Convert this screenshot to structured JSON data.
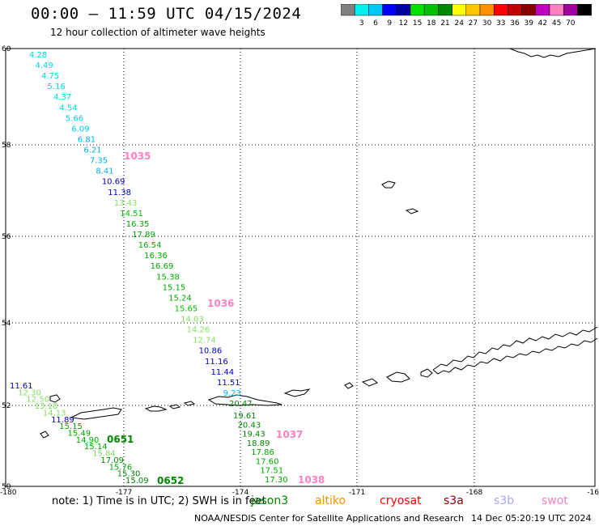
{
  "title": "00:00 – 11:59 UTC 04/15/2024",
  "subtitle": "12 hour collection of altimeter wave heights",
  "scale": {
    "unit": "(ft)",
    "colors": [
      "#808080",
      "#00f0f0",
      "#00c8f8",
      "#0000ff",
      "#0000a0",
      "#00e000",
      "#00c000",
      "#008800",
      "#ffff00",
      "#ffc800",
      "#ff9000",
      "#ff0000",
      "#c00000",
      "#880000",
      "#c000c0",
      "#ff80c0",
      "#a000a0",
      "#000000"
    ],
    "labels": [
      "3",
      "6",
      "9",
      "12",
      "15",
      "18",
      "21",
      "24",
      "27",
      "30",
      "33",
      "36",
      "39",
      "42",
      "45",
      "70"
    ]
  },
  "axes": {
    "lat_labels": [
      "60",
      "58",
      "56",
      "54",
      "52",
      "50"
    ],
    "lon_labels": [
      "-180",
      "-177",
      "-174",
      "-171",
      "-168",
      "-16"
    ]
  },
  "track1": {
    "values": [
      "4.28",
      "4.49",
      "4.75",
      "5.16",
      "4.37",
      "4.54",
      "5.66",
      "6.09",
      "6.81",
      "6.21",
      "7.35",
      "8.41",
      "10.69",
      "11.38",
      "13.43",
      "14.51",
      "16.35",
      "17.89",
      "16.54",
      "16.36",
      "16.69",
      "15.38",
      "15.15",
      "15.24",
      "15.65",
      "14.03",
      "14.26",
      "12.74",
      "10.86",
      "11.16",
      "11.44",
      "11.51",
      "9.23",
      "20.47"
    ],
    "colors": [
      "#00d8d8",
      "#00d8d8",
      "#00d8d8",
      "#00d8d8",
      "#00d8d8",
      "#00d8d8",
      "#00c8f8",
      "#00c8f8",
      "#00b0f0",
      "#00b0f0",
      "#00b0f0",
      "#00b0f0",
      "#0000c0",
      "#0000c0",
      "#80e060",
      "#00c000",
      "#00a800",
      "#00a800",
      "#00a800",
      "#00a800",
      "#00a800",
      "#00a800",
      "#00a800",
      "#00a800",
      "#00c000",
      "#80e060",
      "#80e060",
      "#80e060",
      "#0000c0",
      "#0000c0",
      "#0000c0",
      "#0000c0",
      "#00b0f0",
      "#008800"
    ]
  },
  "track2": {
    "values": [
      "11.61",
      "12.30",
      "12.50",
      "13.18",
      "14.13",
      "11.89",
      "15.15",
      "15.49",
      "14.90",
      "15.14",
      "15.84",
      "17.09",
      "15.76",
      "15.30",
      "15.09"
    ],
    "colors": [
      "#0000c0",
      "#80e060",
      "#80e060",
      "#80e060",
      "#80e060",
      "#0000c0",
      "#00a800",
      "#00a800",
      "#00a800",
      "#00a800",
      "#80e060",
      "#008800",
      "#00a800",
      "#008800",
      "#008800"
    ]
  },
  "track3": {
    "values": [
      "19.61",
      "20.43",
      "19.43",
      "18.89",
      "17.86",
      "17.60",
      "17.51",
      "17.30"
    ],
    "colors": [
      "#008800",
      "#008800",
      "#008800",
      "#008800",
      "#00a800",
      "#00a800",
      "#00a800",
      "#00a800"
    ]
  },
  "time_labels": {
    "t1035": "1035",
    "t1036": "1036",
    "t1037": "1037",
    "t1038": "1038",
    "t0651": "0651",
    "t0652": "0652",
    "color_pink": "#ff80c0",
    "color_green": "#008800"
  },
  "footer": {
    "note": "note:  1) Time is in UTC;  2) SWH is in feet",
    "legend": [
      {
        "name": "jason3",
        "color": "#008800"
      },
      {
        "name": "altiko",
        "color": "#ff9000"
      },
      {
        "name": "cryosat",
        "color": "#ff0000"
      },
      {
        "name": "s3a",
        "color": "#880000"
      },
      {
        "name": "s3b",
        "color": "#a8a8f0"
      },
      {
        "name": "swot",
        "color": "#ff80c0"
      }
    ],
    "credit": "NOAA/NESDIS Center for Satellite Applications and Research",
    "timestamp": "14 Dec 05:20:19 UTC 2024"
  }
}
